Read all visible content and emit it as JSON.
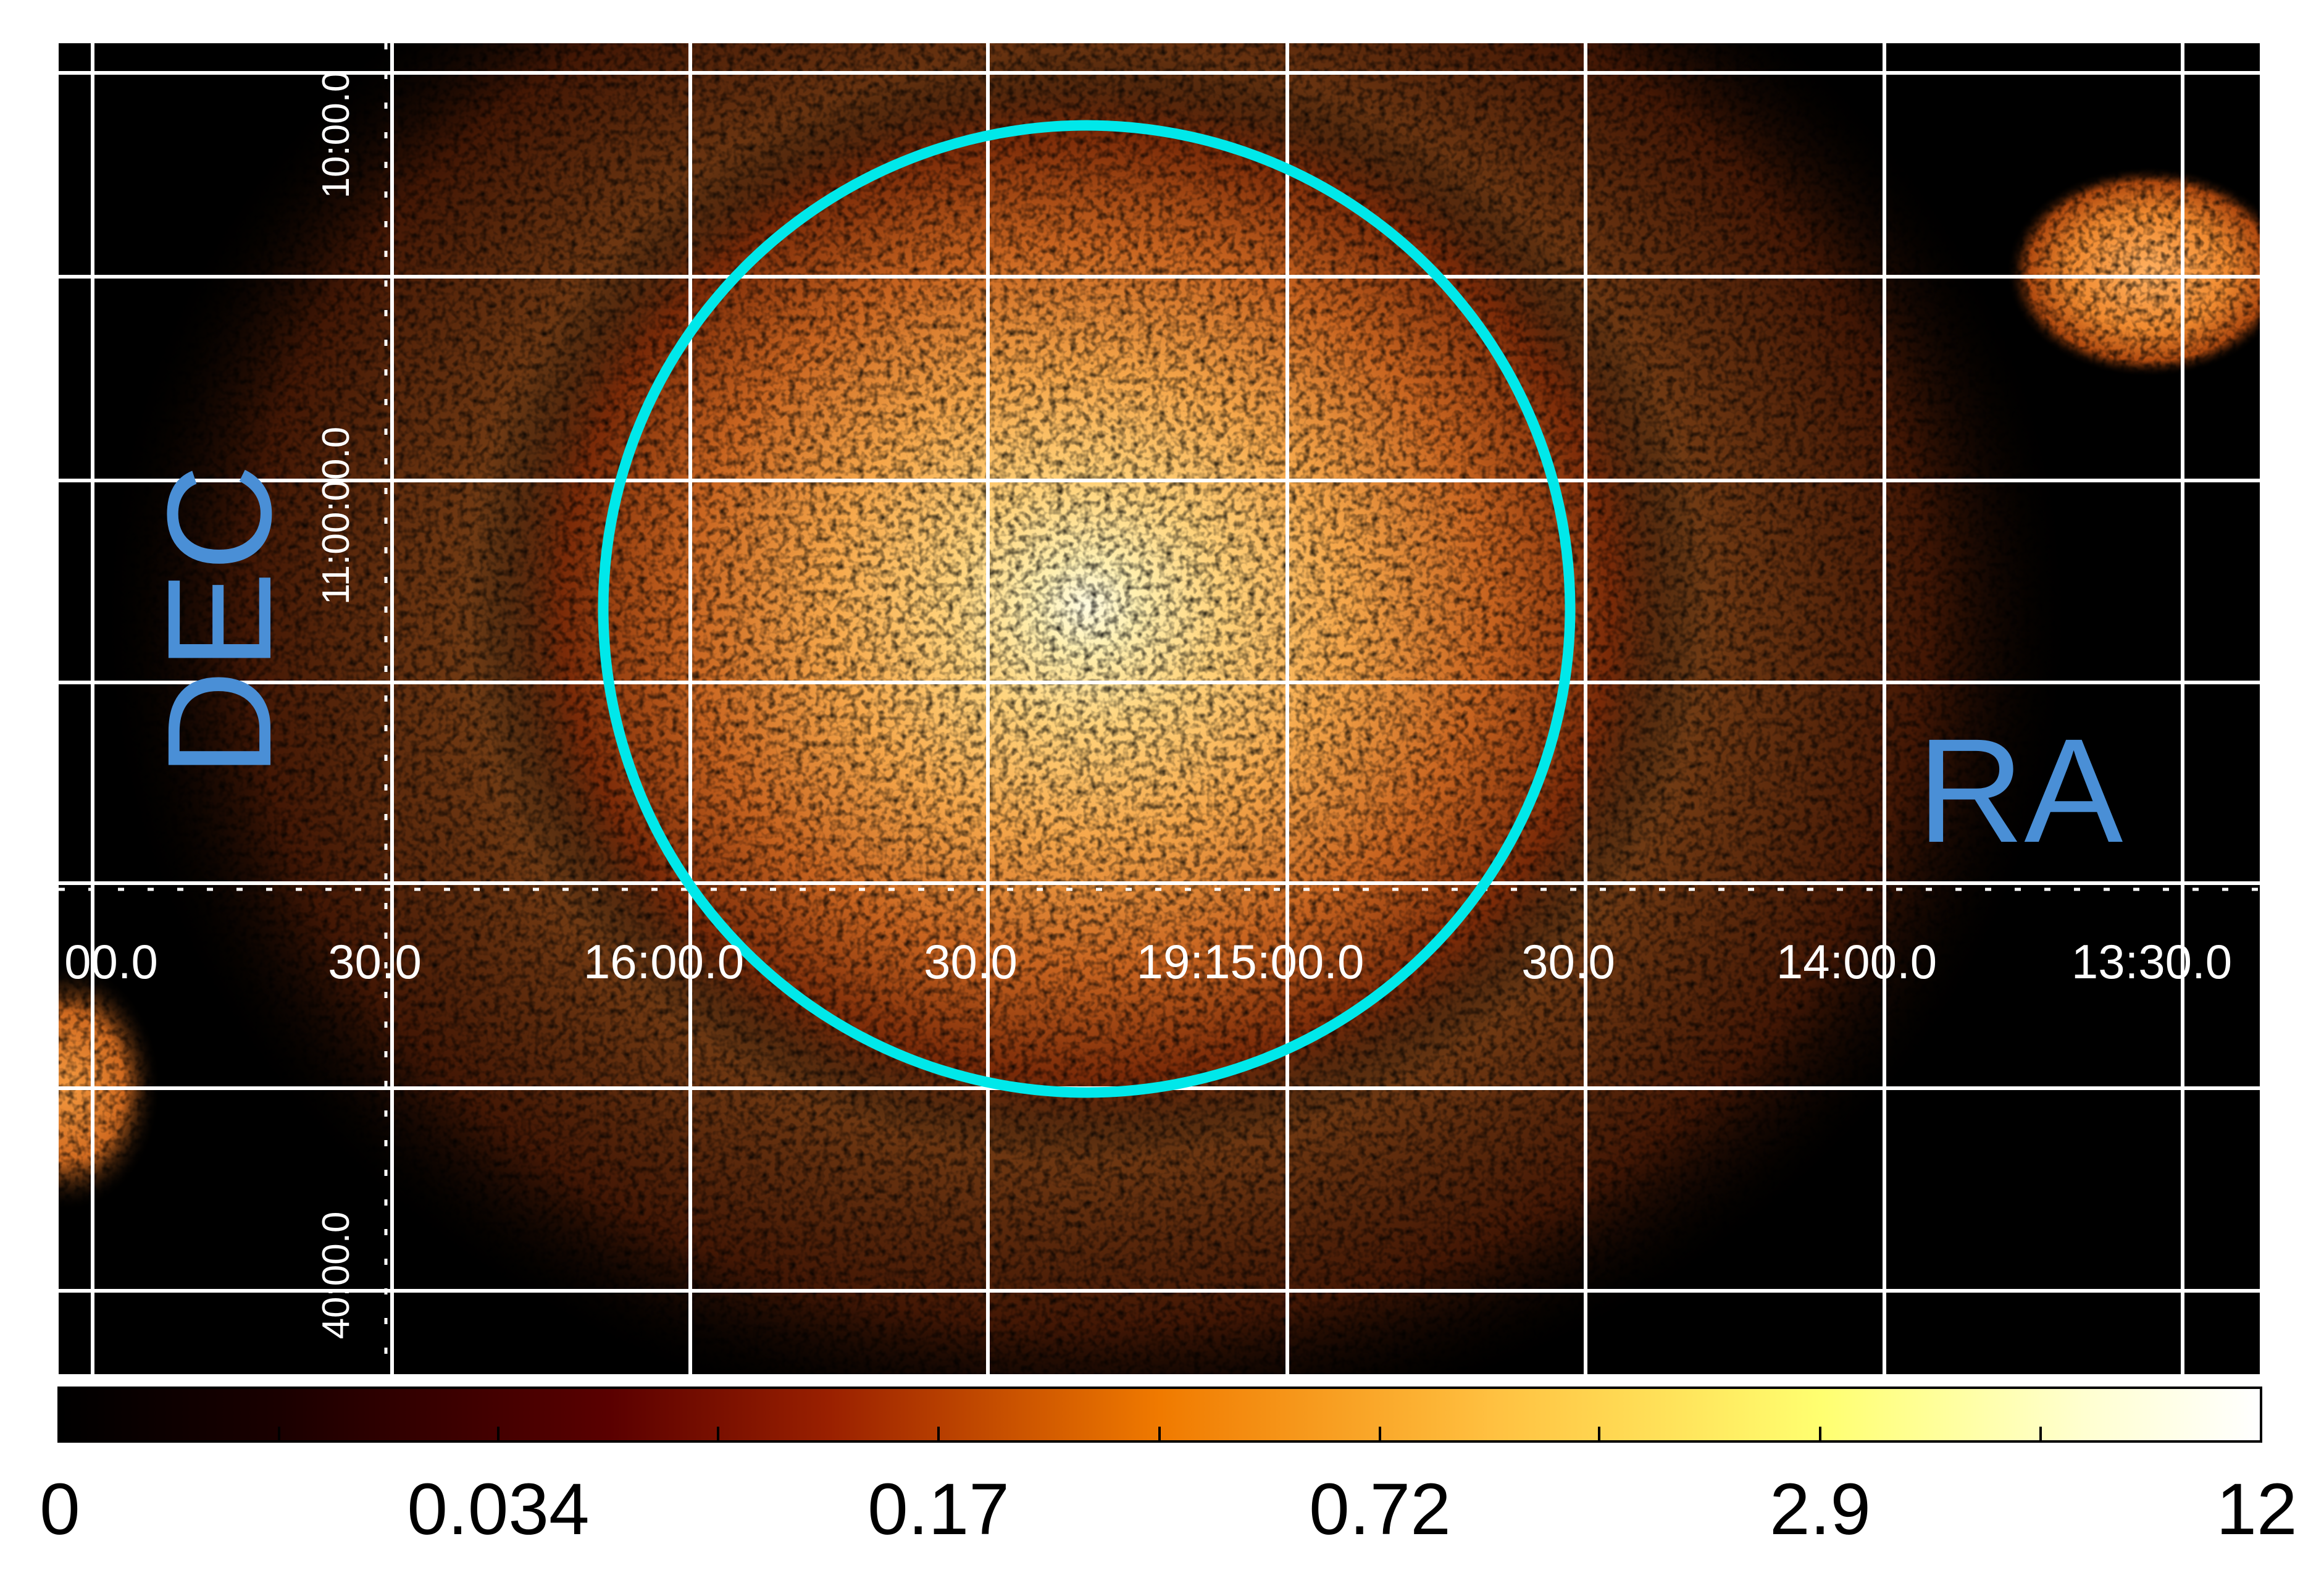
{
  "image": {
    "axis_labels": {
      "ra": "RA",
      "dec": "DEC"
    },
    "ra_tick_labels": [
      "00.0",
      "30.0",
      "16:00.0",
      "30.0",
      "19:15:00.0",
      "30.0",
      "14:00.0",
      "13:30.0"
    ],
    "dec_tick_labels": [
      "10:00.0",
      "11:00:00.0",
      "40:00.0"
    ],
    "region": {
      "shape": "circle",
      "color": "#00e8ea"
    },
    "grid": true,
    "colormap": "heat (black-red-orange-yellow-white)"
  },
  "colorbar": {
    "tick_labels": [
      "0",
      "0.034",
      "0.17",
      "0.72",
      "2.9",
      "12"
    ],
    "range": [
      0,
      12
    ],
    "scale": "log"
  }
}
